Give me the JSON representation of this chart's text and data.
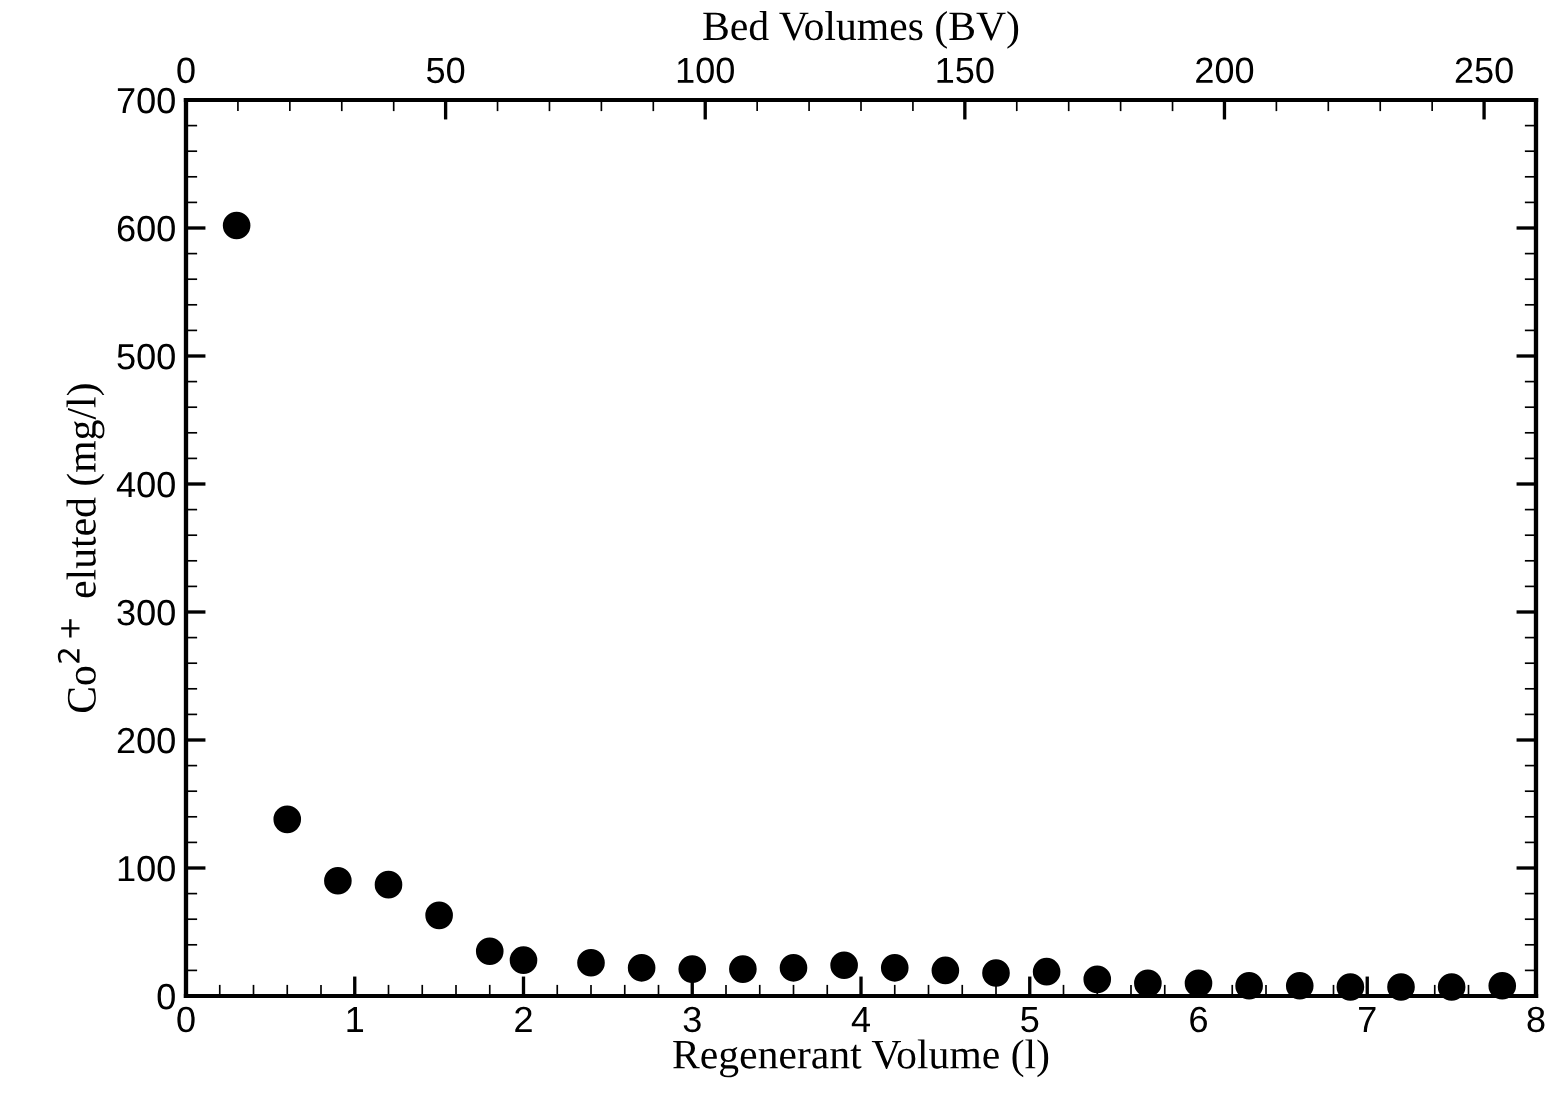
{
  "chart_data": {
    "type": "scatter",
    "xlabel": "Regenerant Volume (l)",
    "ylabel": "Co$^{2+}$ eluted (mg/l)",
    "x2label": "Bed Volumes (BV)",
    "x": [
      0.3,
      0.6,
      0.9,
      1.2,
      1.5,
      1.8,
      2.0,
      2.4,
      2.7,
      3.0,
      3.3,
      3.6,
      3.9,
      4.2,
      4.5,
      4.8,
      5.1,
      5.4,
      5.7,
      6.0,
      6.3,
      6.6,
      6.9,
      7.2,
      7.5,
      7.8
    ],
    "series": [
      {
        "color": "#000000",
        "values": [
          602,
          138,
          90,
          87,
          63,
          35,
          28,
          26,
          22,
          21,
          21,
          22,
          24,
          22,
          20,
          18,
          19,
          13,
          10,
          10,
          8,
          8,
          7,
          7,
          7,
          8
        ]
      }
    ],
    "marker": "circle",
    "grid": false,
    "legend": false,
    "xlim": [
      0,
      8
    ],
    "xticks": [
      0,
      1,
      2,
      3,
      4,
      5,
      6,
      7,
      8
    ],
    "ylim": [
      0,
      700
    ],
    "yticks": [
      0,
      100,
      200,
      300,
      400,
      500,
      600,
      700
    ],
    "x2lim": [
      0,
      260
    ],
    "x2ticks": [
      0,
      50,
      100,
      150,
      200,
      250
    ]
  }
}
